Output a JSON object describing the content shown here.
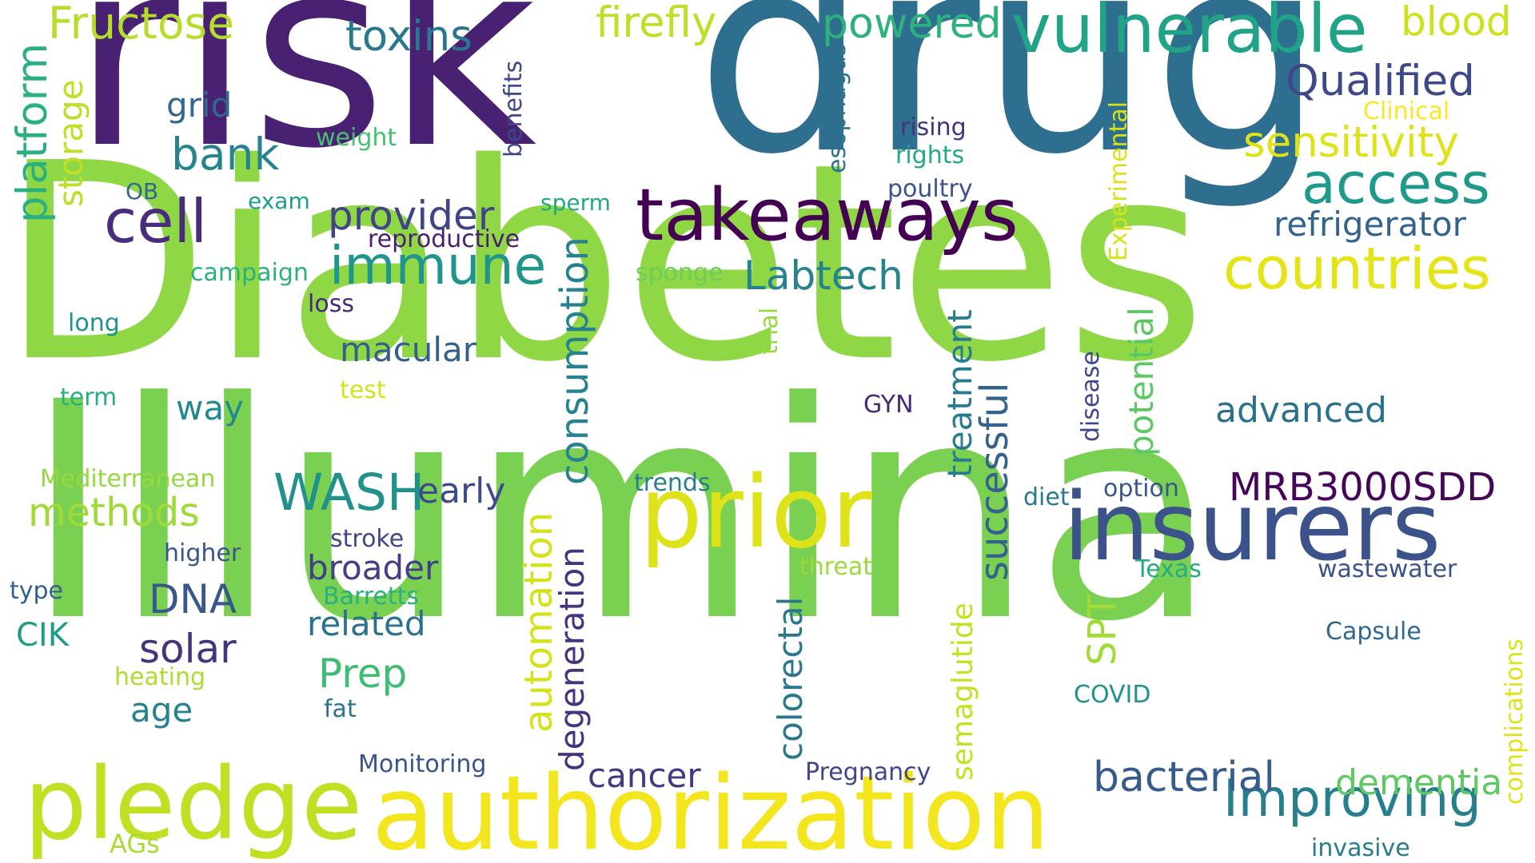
{
  "cloud": {
    "words": [
      {
        "text": "Diabetes",
        "color": "#8fd744"
      },
      {
        "text": "Illumina",
        "color": "#7ad151"
      },
      {
        "text": "drug",
        "color": "#2e6e8e"
      },
      {
        "text": "risk",
        "color": "#482173"
      },
      {
        "text": "authorization",
        "color": "#f3e61e"
      },
      {
        "text": "insurers",
        "color": "#3b528b"
      },
      {
        "text": "prior",
        "color": "#dde318"
      },
      {
        "text": "pledge",
        "color": "#c2df23"
      },
      {
        "text": "takeaways",
        "color": "#440154"
      },
      {
        "text": "vulnerable",
        "color": "#20a386"
      },
      {
        "text": "countries",
        "color": "#e5e419"
      },
      {
        "text": "access",
        "color": "#1f9a8a"
      },
      {
        "text": "immune",
        "color": "#1f968b"
      },
      {
        "text": "Improving",
        "color": "#277f8e"
      },
      {
        "text": "Fructose",
        "color": "#b5de2b"
      },
      {
        "text": "firefly",
        "color": "#bddf26"
      },
      {
        "text": "powered",
        "color": "#2db27d"
      },
      {
        "text": "blood",
        "color": "#cde11d"
      },
      {
        "text": "toxins",
        "color": "#2a778e"
      },
      {
        "text": "Qualified",
        "color": "#3e4989"
      },
      {
        "text": "sensitivity",
        "color": "#dde318"
      },
      {
        "text": "refrigerator",
        "color": "#33638d"
      },
      {
        "text": "cell",
        "color": "#472d7b"
      },
      {
        "text": "bank",
        "color": "#25848e"
      },
      {
        "text": "grid",
        "color": "#31688e"
      },
      {
        "text": "provider",
        "color": "#414487"
      },
      {
        "text": "Labtech",
        "color": "#26828e"
      },
      {
        "text": "WASH",
        "color": "#21918c"
      },
      {
        "text": "early",
        "color": "#3e4a89"
      },
      {
        "text": "methods",
        "color": "#a0da39"
      },
      {
        "text": "MRB3000SDD",
        "color": "#450559"
      },
      {
        "text": "advanced",
        "color": "#2c728e"
      },
      {
        "text": "bacterial",
        "color": "#365c8d"
      },
      {
        "text": "dementia",
        "color": "#5ec962"
      },
      {
        "text": "macular",
        "color": "#35608d"
      },
      {
        "text": "way",
        "color": "#23898e"
      },
      {
        "text": "DNA",
        "color": "#38588c"
      },
      {
        "text": "solar",
        "color": "#46337e"
      },
      {
        "text": "Prep",
        "color": "#3fbc73"
      },
      {
        "text": "broader",
        "color": "#433e85"
      },
      {
        "text": "related",
        "color": "#2c728e"
      },
      {
        "text": "age",
        "color": "#26828e"
      },
      {
        "text": "cancer",
        "color": "#453781"
      },
      {
        "text": "weight",
        "color": "#48c16e"
      },
      {
        "text": "rising",
        "color": "#46327e"
      },
      {
        "text": "rights",
        "color": "#22a884"
      },
      {
        "text": "poultry",
        "color": "#3b528b"
      },
      {
        "text": "Clinical",
        "color": "#fde725"
      },
      {
        "text": "exam",
        "color": "#1f9e89"
      },
      {
        "text": "OB",
        "color": "#31688e"
      },
      {
        "text": "sperm",
        "color": "#22a884"
      },
      {
        "text": "reproductive",
        "color": "#481f70"
      },
      {
        "text": "campaign",
        "color": "#2ab07f"
      },
      {
        "text": "sponge",
        "color": "#6ccd5a"
      },
      {
        "text": "loss",
        "color": "#482878"
      },
      {
        "text": "long",
        "color": "#21918c"
      },
      {
        "text": "test",
        "color": "#d2e21b"
      },
      {
        "text": "term",
        "color": "#29af7f"
      },
      {
        "text": "GYN",
        "color": "#482878"
      },
      {
        "text": "Mediterranean",
        "color": "#95d840"
      },
      {
        "text": "trends",
        "color": "#287d8e"
      },
      {
        "text": "diet",
        "color": "#2a788e"
      },
      {
        "text": "option",
        "color": "#39568c"
      },
      {
        "text": "stroke",
        "color": "#404688"
      },
      {
        "text": "higher",
        "color": "#3a548c"
      },
      {
        "text": "threat",
        "color": "#9bd93c"
      },
      {
        "text": "Texas",
        "color": "#25ab82"
      },
      {
        "text": "wastewater",
        "color": "#3b528b"
      },
      {
        "text": "type",
        "color": "#355f8d"
      },
      {
        "text": "Barretts",
        "color": "#2ab07f"
      },
      {
        "text": "CIK",
        "color": "#1e9c89"
      },
      {
        "text": "heating",
        "color": "#addc30"
      },
      {
        "text": "Capsule",
        "color": "#31688e"
      },
      {
        "text": "COVID",
        "color": "#21918c"
      },
      {
        "text": "fat",
        "color": "#2c728e"
      },
      {
        "text": "Monitoring",
        "color": "#3b528b"
      },
      {
        "text": "Pregnancy",
        "color": "#404688"
      },
      {
        "text": "AGs",
        "color": "#a8db34"
      },
      {
        "text": "invasive",
        "color": "#287c8e"
      },
      {
        "text": "platform",
        "color": "#2ab07f"
      },
      {
        "text": "storage",
        "color": "#bddf26"
      },
      {
        "text": "benefits",
        "color": "#3f4788"
      },
      {
        "text": "esophagus",
        "color": "#2c728e"
      },
      {
        "text": "Experimental",
        "color": "#d8e219"
      },
      {
        "text": "consumption",
        "color": "#26828e"
      },
      {
        "text": "automation",
        "color": "#d5e21a"
      },
      {
        "text": "degeneration",
        "color": "#46327e"
      },
      {
        "text": "treatment",
        "color": "#287c8e"
      },
      {
        "text": "successful",
        "color": "#34618d"
      },
      {
        "text": "potential",
        "color": "#5cc863"
      },
      {
        "text": "disease",
        "color": "#3f4788"
      },
      {
        "text": "trial",
        "color": "#95d840"
      },
      {
        "text": "SPT",
        "color": "#a2da37"
      },
      {
        "text": "colorectal",
        "color": "#2a778e"
      },
      {
        "text": "semaglutide",
        "color": "#c5e021"
      },
      {
        "text": "complications",
        "color": "#dde318"
      }
    ]
  }
}
